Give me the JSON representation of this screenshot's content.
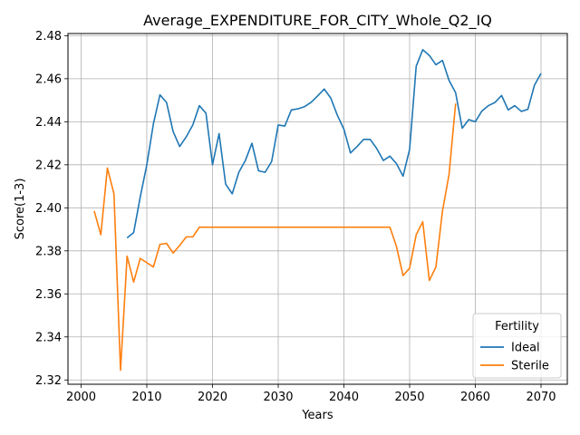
{
  "chart_data": {
    "type": "line",
    "title": "Average_EXPENDITURE_FOR_CITY_Whole_Q2_IQ",
    "xlabel": "Years",
    "ylabel": "Score(1-3)",
    "xlim": [
      1998,
      2074
    ],
    "ylim": [
      2.318,
      2.481
    ],
    "xticks": [
      2000,
      2010,
      2020,
      2030,
      2040,
      2050,
      2060,
      2070
    ],
    "yticks": [
      2.32,
      2.34,
      2.36,
      2.38,
      2.4,
      2.42,
      2.44,
      2.46,
      2.48
    ],
    "ytick_labels": [
      "2.32",
      "2.34",
      "2.36",
      "2.38",
      "2.40",
      "2.42",
      "2.44",
      "2.46",
      "2.48"
    ],
    "grid": true,
    "legend": {
      "title": "Fertility",
      "placement": "bottom-right"
    },
    "series": [
      {
        "name": "Ideal",
        "color": "#1f77b4",
        "x": [
          2007,
          2008,
          2009,
          2010,
          2011,
          2012,
          2013,
          2014,
          2015,
          2016,
          2017,
          2018,
          2019,
          2020,
          2021,
          2022,
          2023,
          2024,
          2025,
          2026,
          2027,
          2028,
          2029,
          2030,
          2031,
          2032,
          2033,
          2034,
          2035,
          2036,
          2037,
          2038,
          2039,
          2040,
          2041,
          2042,
          2043,
          2044,
          2045,
          2046,
          2047,
          2048,
          2049,
          2050,
          2051,
          2052,
          2053,
          2054,
          2055,
          2056,
          2057,
          2058,
          2059,
          2060,
          2061,
          2062,
          2063,
          2064,
          2065,
          2066,
          2067,
          2068,
          2069,
          2070
        ],
        "values": [
          2.386,
          2.3885,
          2.405,
          2.42,
          2.439,
          2.4525,
          2.449,
          2.4355,
          2.4285,
          2.433,
          2.4385,
          2.4475,
          2.444,
          2.42,
          2.4345,
          2.411,
          2.4065,
          2.4165,
          2.422,
          2.43,
          2.4172,
          2.4165,
          2.4215,
          2.4385,
          2.438,
          2.4455,
          2.446,
          2.447,
          2.449,
          2.452,
          2.4552,
          2.451,
          2.443,
          2.4365,
          2.4255,
          2.4285,
          2.4318,
          2.4318,
          2.4275,
          2.422,
          2.424,
          2.4205,
          2.4147,
          2.4272,
          2.4658,
          2.4735,
          2.4708,
          2.4665,
          2.4685,
          2.4592,
          2.4535,
          2.437,
          2.441,
          2.44,
          2.445,
          2.4475,
          2.449,
          2.4522,
          2.4455,
          2.4475,
          2.4448,
          2.4458,
          2.457,
          2.4625
        ]
      },
      {
        "name": "Sterile",
        "color": "#ff7f0e",
        "x": [
          2002,
          2003,
          2004,
          2005,
          2006,
          2007,
          2008,
          2009,
          2010,
          2011,
          2012,
          2013,
          2014,
          2015,
          2016,
          2017,
          2018,
          2019,
          2020,
          2021,
          2022,
          2023,
          2024,
          2025,
          2026,
          2027,
          2028,
          2029,
          2030,
          2031,
          2032,
          2033,
          2034,
          2035,
          2036,
          2037,
          2038,
          2039,
          2040,
          2041,
          2042,
          2043,
          2044,
          2045,
          2046,
          2047,
          2048,
          2049,
          2050,
          2051,
          2052,
          2053,
          2054,
          2055,
          2056,
          2057
        ],
        "values": [
          2.3985,
          2.3875,
          2.4185,
          2.4065,
          2.3245,
          2.3775,
          2.3655,
          2.3765,
          2.3745,
          2.3725,
          2.383,
          2.3835,
          2.379,
          2.3825,
          2.3865,
          2.3865,
          2.391,
          2.391,
          2.391,
          2.391,
          2.391,
          2.391,
          2.391,
          2.391,
          2.391,
          2.391,
          2.391,
          2.391,
          2.391,
          2.391,
          2.391,
          2.391,
          2.391,
          2.391,
          2.391,
          2.391,
          2.391,
          2.391,
          2.391,
          2.391,
          2.391,
          2.391,
          2.391,
          2.391,
          2.391,
          2.391,
          2.382,
          2.3685,
          2.372,
          2.3875,
          2.3935,
          2.3662,
          2.3725,
          2.3985,
          2.4155,
          2.4485
        ]
      }
    ]
  }
}
